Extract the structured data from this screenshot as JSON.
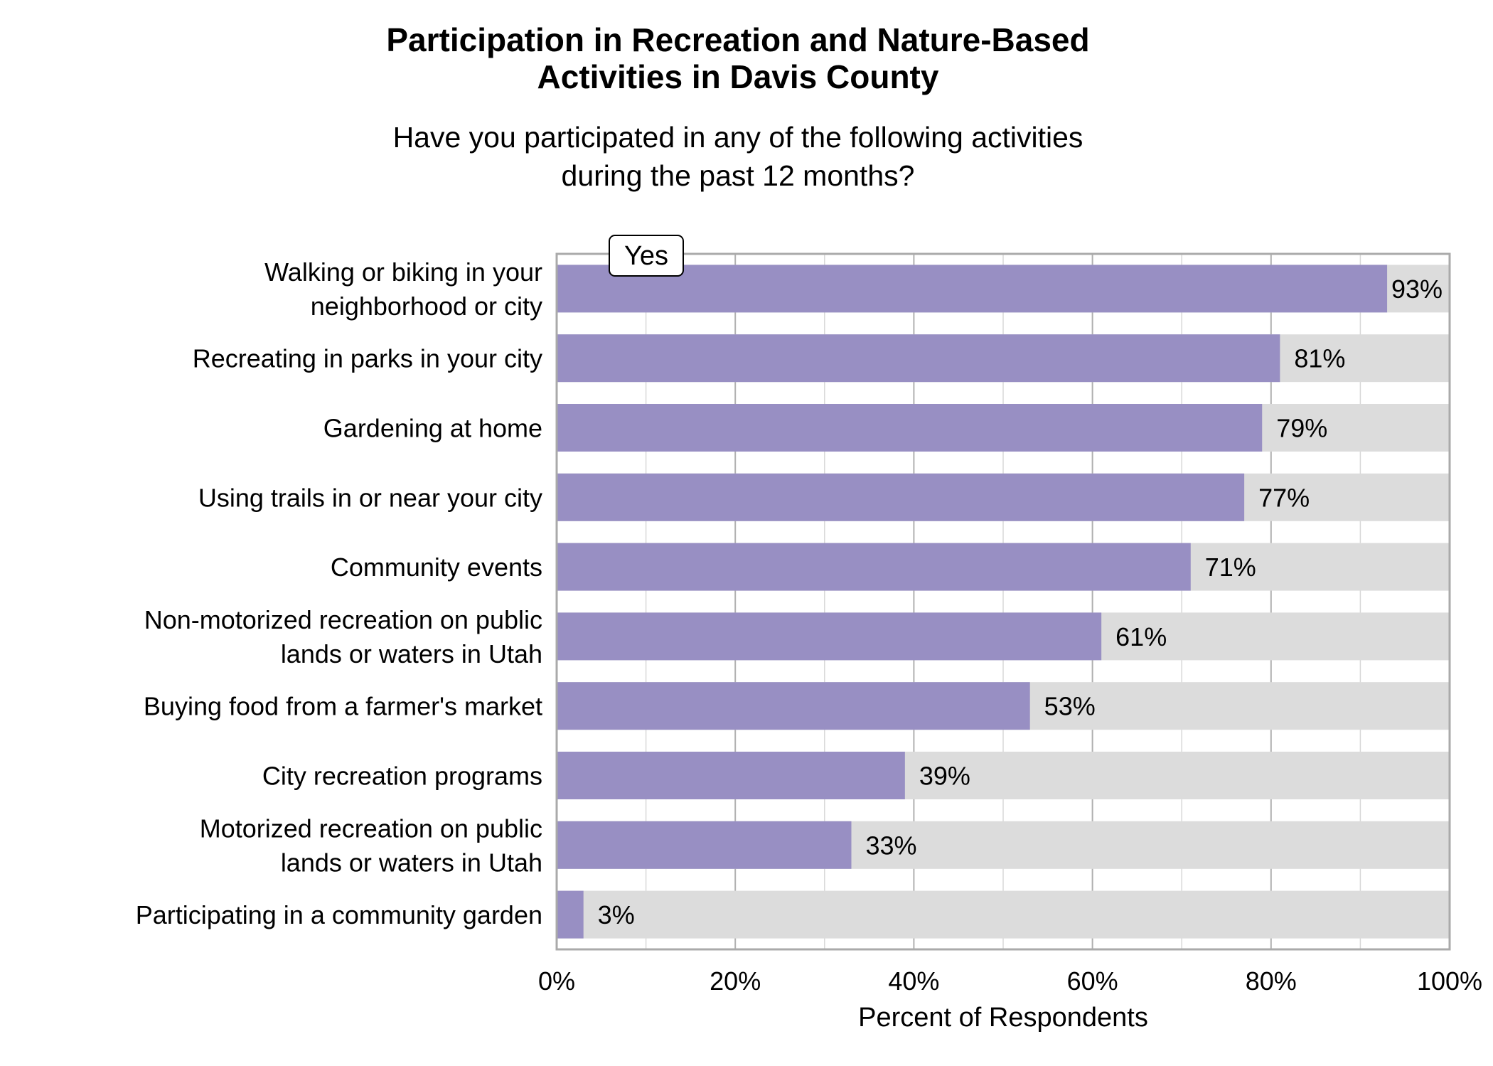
{
  "chart_data": {
    "type": "bar",
    "orientation": "horizontal",
    "stacked_to": 100,
    "title": [
      "Participation in Recreation and Nature-Based",
      "Activities in Davis County"
    ],
    "subtitle": [
      "Have you participated in any of the following activities",
      "during the past 12 months?"
    ],
    "xlabel": "Percent of Respondents",
    "ylabel": "",
    "xlim": [
      0,
      100
    ],
    "xticks": [
      "0%",
      "20%",
      "40%",
      "60%",
      "80%",
      "100%"
    ],
    "grid": true,
    "legend": {
      "label": "Yes",
      "placement": "top-left"
    },
    "categories": [
      [
        "Walking or biking in your",
        "neighborhood or city"
      ],
      [
        "Recreating in parks in your city"
      ],
      [
        "Gardening at home"
      ],
      [
        "Using trails in or near your city"
      ],
      [
        "Community events"
      ],
      [
        "Non-motorized recreation on public",
        "lands or waters in Utah"
      ],
      [
        "Buying food from a farmer's market"
      ],
      [
        "City recreation programs"
      ],
      [
        "Motorized recreation on public",
        "lands or waters in Utah"
      ],
      [
        "Participating in a community garden"
      ]
    ],
    "series": [
      {
        "name": "Yes",
        "color": "#988fc3",
        "values": [
          93,
          81,
          79,
          77,
          71,
          61,
          53,
          39,
          33,
          3
        ]
      }
    ],
    "data_labels": [
      "93%",
      "81%",
      "79%",
      "77%",
      "71%",
      "61%",
      "53%",
      "39%",
      "33%",
      "3%"
    ],
    "remainder_color": "#dcdcdc"
  }
}
